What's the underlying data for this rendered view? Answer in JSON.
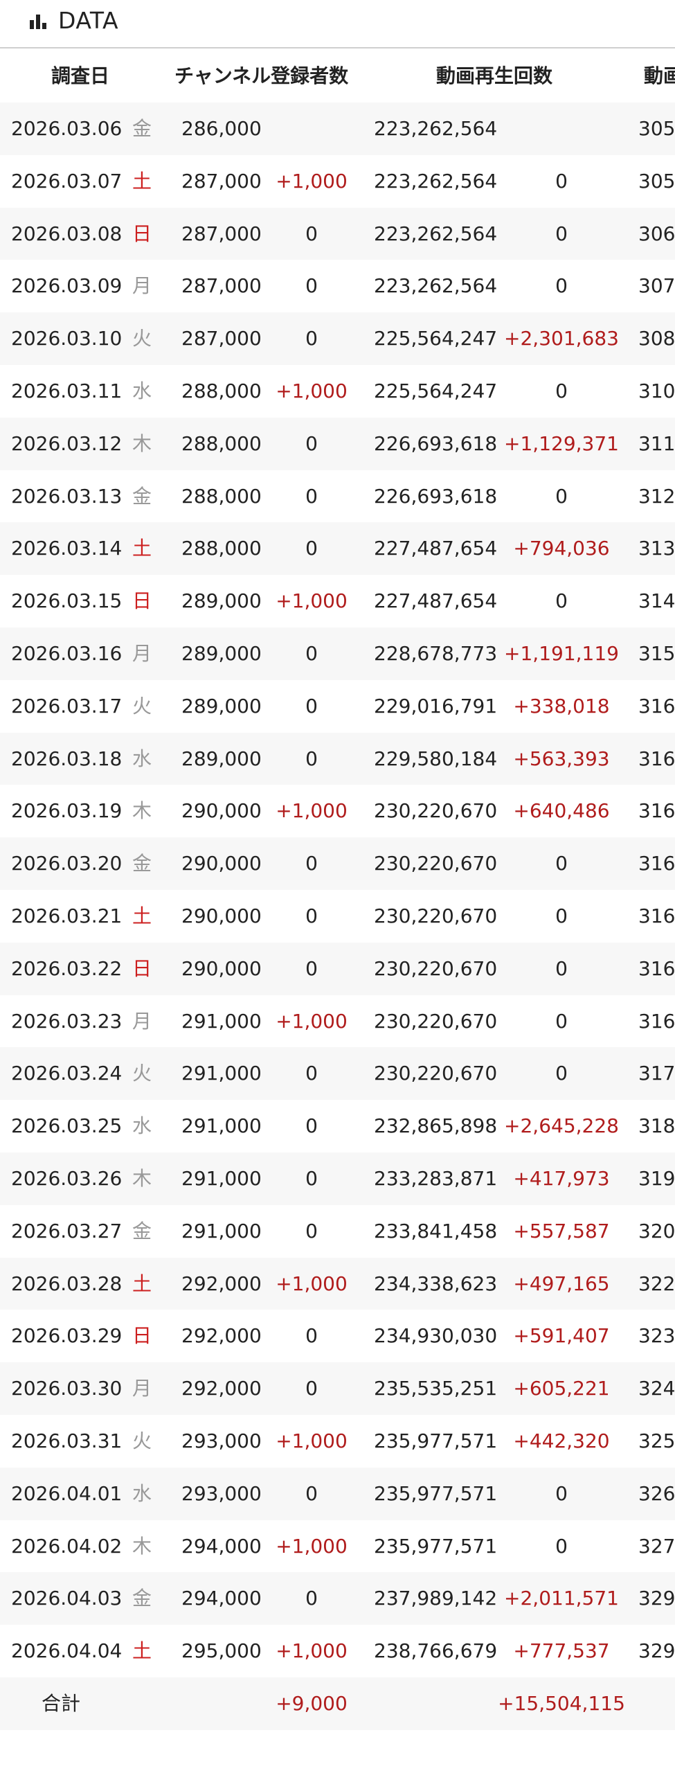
{
  "header": {
    "title": "DATA",
    "icon": "bar-chart-icon"
  },
  "table": {
    "columns": [
      "調査日",
      "チャンネル登録者数",
      "動画再生回数",
      "動画"
    ],
    "rows": [
      {
        "date": "2026.03.06",
        "dow": "金",
        "dow_type": "weekday",
        "subs": "286,000",
        "subs_delta": "",
        "views": "223,262,564",
        "views_delta": "",
        "videos": "305"
      },
      {
        "date": "2026.03.07",
        "dow": "土",
        "dow_type": "sat",
        "subs": "287,000",
        "subs_delta": "+1,000",
        "views": "223,262,564",
        "views_delta": "0",
        "videos": "305"
      },
      {
        "date": "2026.03.08",
        "dow": "日",
        "dow_type": "sun",
        "subs": "287,000",
        "subs_delta": "0",
        "views": "223,262,564",
        "views_delta": "0",
        "videos": "306"
      },
      {
        "date": "2026.03.09",
        "dow": "月",
        "dow_type": "weekday",
        "subs": "287,000",
        "subs_delta": "0",
        "views": "223,262,564",
        "views_delta": "0",
        "videos": "307"
      },
      {
        "date": "2026.03.10",
        "dow": "火",
        "dow_type": "weekday",
        "subs": "287,000",
        "subs_delta": "0",
        "views": "225,564,247",
        "views_delta": "+2,301,683",
        "videos": "308"
      },
      {
        "date": "2026.03.11",
        "dow": "水",
        "dow_type": "weekday",
        "subs": "288,000",
        "subs_delta": "+1,000",
        "views": "225,564,247",
        "views_delta": "0",
        "videos": "310"
      },
      {
        "date": "2026.03.12",
        "dow": "木",
        "dow_type": "weekday",
        "subs": "288,000",
        "subs_delta": "0",
        "views": "226,693,618",
        "views_delta": "+1,129,371",
        "videos": "311"
      },
      {
        "date": "2026.03.13",
        "dow": "金",
        "dow_type": "weekday",
        "subs": "288,000",
        "subs_delta": "0",
        "views": "226,693,618",
        "views_delta": "0",
        "videos": "312"
      },
      {
        "date": "2026.03.14",
        "dow": "土",
        "dow_type": "sat",
        "subs": "288,000",
        "subs_delta": "0",
        "views": "227,487,654",
        "views_delta": "+794,036",
        "videos": "313"
      },
      {
        "date": "2026.03.15",
        "dow": "日",
        "dow_type": "sun",
        "subs": "289,000",
        "subs_delta": "+1,000",
        "views": "227,487,654",
        "views_delta": "0",
        "videos": "314"
      },
      {
        "date": "2026.03.16",
        "dow": "月",
        "dow_type": "weekday",
        "subs": "289,000",
        "subs_delta": "0",
        "views": "228,678,773",
        "views_delta": "+1,191,119",
        "videos": "315"
      },
      {
        "date": "2026.03.17",
        "dow": "火",
        "dow_type": "weekday",
        "subs": "289,000",
        "subs_delta": "0",
        "views": "229,016,791",
        "views_delta": "+338,018",
        "videos": "316"
      },
      {
        "date": "2026.03.18",
        "dow": "水",
        "dow_type": "weekday",
        "subs": "289,000",
        "subs_delta": "0",
        "views": "229,580,184",
        "views_delta": "+563,393",
        "videos": "316"
      },
      {
        "date": "2026.03.19",
        "dow": "木",
        "dow_type": "weekday",
        "subs": "290,000",
        "subs_delta": "+1,000",
        "views": "230,220,670",
        "views_delta": "+640,486",
        "videos": "316"
      },
      {
        "date": "2026.03.20",
        "dow": "金",
        "dow_type": "weekday",
        "subs": "290,000",
        "subs_delta": "0",
        "views": "230,220,670",
        "views_delta": "0",
        "videos": "316"
      },
      {
        "date": "2026.03.21",
        "dow": "土",
        "dow_type": "sat",
        "subs": "290,000",
        "subs_delta": "0",
        "views": "230,220,670",
        "views_delta": "0",
        "videos": "316"
      },
      {
        "date": "2026.03.22",
        "dow": "日",
        "dow_type": "sun",
        "subs": "290,000",
        "subs_delta": "0",
        "views": "230,220,670",
        "views_delta": "0",
        "videos": "316"
      },
      {
        "date": "2026.03.23",
        "dow": "月",
        "dow_type": "weekday",
        "subs": "291,000",
        "subs_delta": "+1,000",
        "views": "230,220,670",
        "views_delta": "0",
        "videos": "316"
      },
      {
        "date": "2026.03.24",
        "dow": "火",
        "dow_type": "weekday",
        "subs": "291,000",
        "subs_delta": "0",
        "views": "230,220,670",
        "views_delta": "0",
        "videos": "317"
      },
      {
        "date": "2026.03.25",
        "dow": "水",
        "dow_type": "weekday",
        "subs": "291,000",
        "subs_delta": "0",
        "views": "232,865,898",
        "views_delta": "+2,645,228",
        "videos": "318"
      },
      {
        "date": "2026.03.26",
        "dow": "木",
        "dow_type": "weekday",
        "subs": "291,000",
        "subs_delta": "0",
        "views": "233,283,871",
        "views_delta": "+417,973",
        "videos": "319"
      },
      {
        "date": "2026.03.27",
        "dow": "金",
        "dow_type": "weekday",
        "subs": "291,000",
        "subs_delta": "0",
        "views": "233,841,458",
        "views_delta": "+557,587",
        "videos": "320"
      },
      {
        "date": "2026.03.28",
        "dow": "土",
        "dow_type": "sat",
        "subs": "292,000",
        "subs_delta": "+1,000",
        "views": "234,338,623",
        "views_delta": "+497,165",
        "videos": "322"
      },
      {
        "date": "2026.03.29",
        "dow": "日",
        "dow_type": "sun",
        "subs": "292,000",
        "subs_delta": "0",
        "views": "234,930,030",
        "views_delta": "+591,407",
        "videos": "323"
      },
      {
        "date": "2026.03.30",
        "dow": "月",
        "dow_type": "weekday",
        "subs": "292,000",
        "subs_delta": "0",
        "views": "235,535,251",
        "views_delta": "+605,221",
        "videos": "324"
      },
      {
        "date": "2026.03.31",
        "dow": "火",
        "dow_type": "weekday",
        "subs": "293,000",
        "subs_delta": "+1,000",
        "views": "235,977,571",
        "views_delta": "+442,320",
        "videos": "325"
      },
      {
        "date": "2026.04.01",
        "dow": "水",
        "dow_type": "weekday",
        "subs": "293,000",
        "subs_delta": "0",
        "views": "235,977,571",
        "views_delta": "0",
        "videos": "326"
      },
      {
        "date": "2026.04.02",
        "dow": "木",
        "dow_type": "weekday",
        "subs": "294,000",
        "subs_delta": "+1,000",
        "views": "235,977,571",
        "views_delta": "0",
        "videos": "327"
      },
      {
        "date": "2026.04.03",
        "dow": "金",
        "dow_type": "weekday",
        "subs": "294,000",
        "subs_delta": "0",
        "views": "237,989,142",
        "views_delta": "+2,011,571",
        "videos": "329"
      },
      {
        "date": "2026.04.04",
        "dow": "土",
        "dow_type": "sat",
        "subs": "295,000",
        "subs_delta": "+1,000",
        "views": "238,766,679",
        "views_delta": "+777,537",
        "videos": "329"
      }
    ],
    "total": {
      "label": "合計",
      "subs_delta": "+9,000",
      "views_delta": "+15,504,115"
    }
  },
  "colors": {
    "weekend": "#cc1f1f",
    "weekday": "#999999",
    "positive_delta": "#b01c1c",
    "stripe": "#f7f7f7"
  }
}
